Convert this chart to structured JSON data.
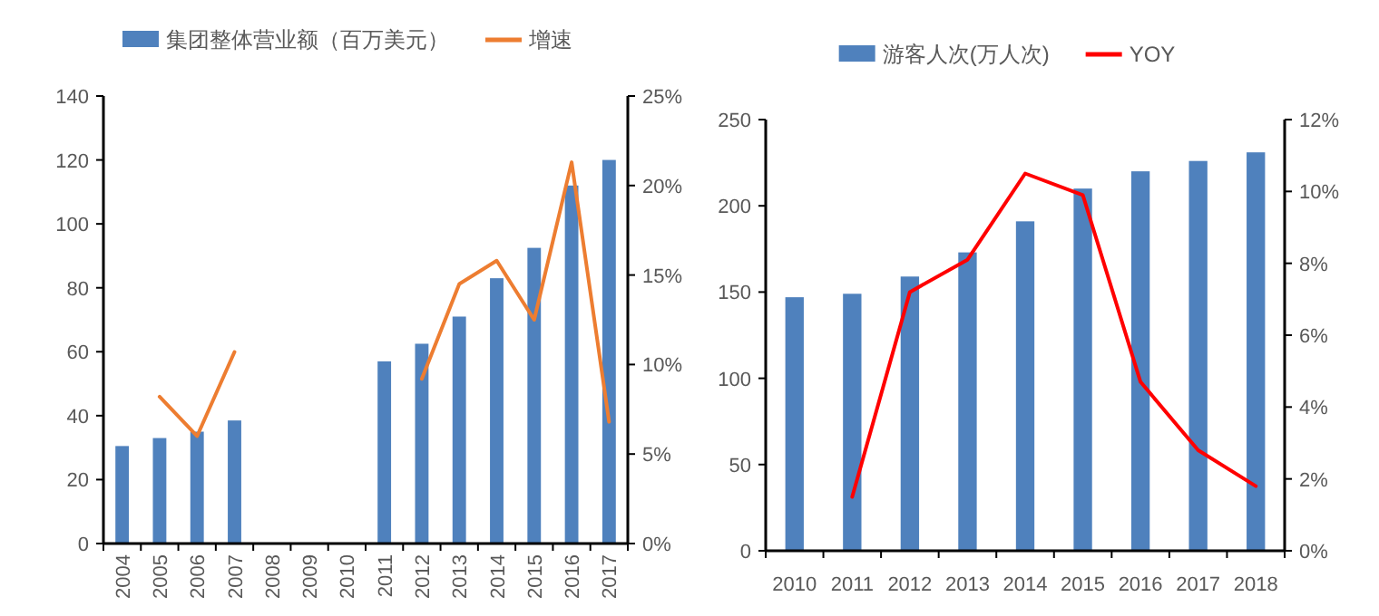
{
  "chart_data": [
    {
      "type": "bar",
      "categories": [
        "2004",
        "2005",
        "2006",
        "2007",
        "2008",
        "2009",
        "2010",
        "2011",
        "2012",
        "2013",
        "2014",
        "2015",
        "2016",
        "2017"
      ],
      "series": [
        {
          "name": "集团整体营业额（百万美元）",
          "color": "#4f81bd",
          "values": [
            30.5,
            33,
            35,
            38.5,
            null,
            null,
            null,
            57,
            62.5,
            71,
            83,
            92.5,
            112,
            120
          ]
        },
        {
          "name": "增速",
          "color": "#ed7d31",
          "type": "line",
          "axis": "y2",
          "values": [
            null,
            8.2,
            6,
            10.7,
            null,
            null,
            null,
            null,
            9.2,
            14.5,
            15.8,
            12.5,
            21.3,
            6.8
          ]
        }
      ],
      "ylim": [
        0,
        140
      ],
      "yticks": [
        0,
        20,
        40,
        60,
        80,
        100,
        120,
        140
      ],
      "y2lim": [
        0,
        25
      ],
      "y2ticks": [
        {
          "value": 0,
          "label": "0%"
        },
        {
          "value": 5,
          "label": "5%"
        },
        {
          "value": 10,
          "label": "10%"
        },
        {
          "value": 15,
          "label": "15%"
        },
        {
          "value": 20,
          "label": "20%"
        },
        {
          "value": 25,
          "label": "25%"
        }
      ],
      "legend": "top"
    },
    {
      "type": "bar",
      "categories": [
        "2010",
        "2011",
        "2012",
        "2013",
        "2014",
        "2015",
        "2016",
        "2017",
        "2018"
      ],
      "series": [
        {
          "name": "游客人次(万人次)",
          "color": "#4f81bd",
          "values": [
            147,
            149,
            159,
            173,
            191,
            210,
            220,
            226,
            231
          ]
        },
        {
          "name": "YOY",
          "color": "#ff0000",
          "type": "line",
          "axis": "y2",
          "values": [
            null,
            1.5,
            7.2,
            8.1,
            10.5,
            9.9,
            4.7,
            2.8,
            1.8
          ]
        }
      ],
      "ylim": [
        0,
        250
      ],
      "yticks": [
        0,
        50,
        100,
        150,
        200,
        250
      ],
      "y2lim": [
        0,
        12
      ],
      "y2ticks": [
        {
          "value": 0,
          "label": "0%"
        },
        {
          "value": 2,
          "label": "2%"
        },
        {
          "value": 4,
          "label": "4%"
        },
        {
          "value": 6,
          "label": "6%"
        },
        {
          "value": 8,
          "label": "8%"
        },
        {
          "value": 10,
          "label": "10%"
        },
        {
          "value": 12,
          "label": "12%"
        }
      ],
      "legend": "top"
    }
  ]
}
